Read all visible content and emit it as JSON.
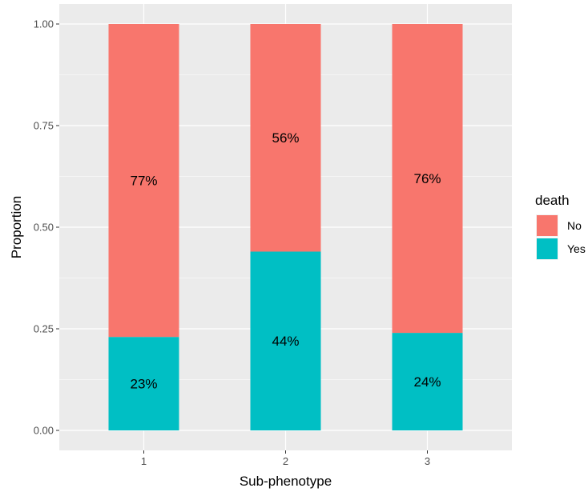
{
  "chart_data": {
    "type": "bar",
    "stacked": true,
    "title": "",
    "xlabel": "Sub-phenotype",
    "ylabel": "Proportion",
    "categories": [
      "1",
      "2",
      "3"
    ],
    "ylim": [
      0,
      1
    ],
    "yticks": [
      0,
      0.25,
      0.5,
      0.75,
      1
    ],
    "ytick_labels": [
      "0.00",
      "0.25",
      "0.50",
      "0.75",
      "1.00"
    ],
    "grid": true,
    "legend": {
      "title": "death",
      "position": "right"
    },
    "series": [
      {
        "name": "Yes",
        "color": "#00BFC4",
        "values": [
          0.23,
          0.44,
          0.24
        ],
        "labels": [
          "23%",
          "44%",
          "24%"
        ]
      },
      {
        "name": "No",
        "color": "#F8766D",
        "values": [
          0.77,
          0.56,
          0.76
        ],
        "labels": [
          "77%",
          "56%",
          "76%"
        ]
      }
    ],
    "legend_order": [
      "No",
      "Yes"
    ],
    "panel_background": "#EBEBEB",
    "grid_color": "#FFFFFF"
  }
}
